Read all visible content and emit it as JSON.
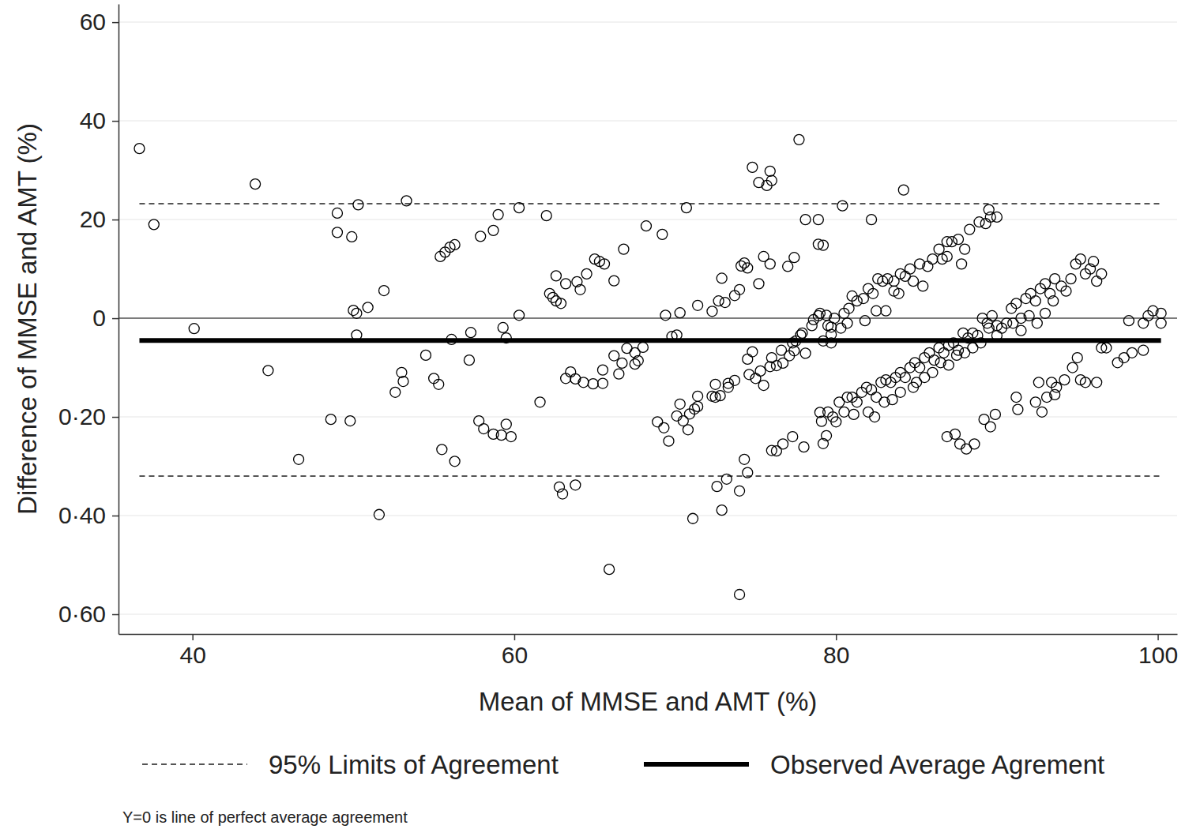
{
  "chart_data": {
    "type": "scatter",
    "x_label": "Mean of MMSE and AMT (%)",
    "y_label": "Difference of MMSE and AMT (%)",
    "note": "Y=0 is line of perfect average agreement",
    "xlim": [
      35.4,
      101.2
    ],
    "ylim": [
      -64,
      63.7
    ],
    "xticks": [
      40,
      60,
      80,
      100
    ],
    "yticks": [
      {
        "value": -60,
        "label": "0·60"
      },
      {
        "value": -40,
        "label": "0·40"
      },
      {
        "value": -20,
        "label": "0·20"
      },
      0,
      20,
      40,
      60
    ],
    "grid": true,
    "marker": "circle",
    "color": "#000000",
    "zero_line": 0,
    "reference_lines": [
      {
        "name": "95% Limits of Agreement",
        "values": [
          23.2,
          -32
        ],
        "line_style": "dashed",
        "color": "#555555"
      },
      {
        "name": "Observed Average Agrement",
        "values": [
          -4.5
        ],
        "line_style": "solid",
        "color": "#000000"
      }
    ],
    "x": [
      36.7,
      37.6,
      40.1,
      43.9,
      44.7,
      46.6,
      49.0,
      49.0,
      48.6,
      49.8,
      50.0,
      50.2,
      50.2,
      49.9,
      50.3,
      50.9,
      51.6,
      51.9,
      53.3,
      53.0,
      53.1,
      52.6,
      54.5,
      55.0,
      55.3,
      55.4,
      55.7,
      56.0,
      56.3,
      55.5,
      56.1,
      56.3,
      57.2,
      57.3,
      57.9,
      57.8,
      58.1,
      58.7,
      59.0,
      58.7,
      59.2,
      59.5,
      59.8,
      59.3,
      59.5,
      60.3,
      60.3,
      61.6,
      62.0,
      62.2,
      62.4,
      62.6,
      62.9,
      62.6,
      63.2,
      63.9,
      64.1,
      62.8,
      63.0,
      63.8,
      63.2,
      63.5,
      63.8,
      64.5,
      65.0,
      65.3,
      65.6,
      64.3,
      64.9,
      65.5,
      65.5,
      66.2,
      66.2,
      65.9,
      66.5,
      66.7,
      67.0,
      67.5,
      66.8,
      68.2,
      67.5,
      67.7,
      68.0,
      69.2,
      69.4,
      68.9,
      69.3,
      69.6,
      69.8,
      70.1,
      70.1,
      70.3,
      70.7,
      70.3,
      70.5,
      70.8,
      70.9,
      71.2,
      71.4,
      71.4,
      71.1,
      71.4,
      72.3,
      72.7,
      73.1,
      72.9,
      72.5,
      72.3,
      72.8,
      73.3,
      73.7,
      72.6,
      72.9,
      73.2,
      73.7,
      74.0,
      74.1,
      74.3,
      74.5,
      74.8,
      75.2,
      75.7,
      75.9,
      76.0,
      74.0,
      74.3,
      74.5,
      74.0,
      74.5,
      74.6,
      74.8,
      75.0,
      75.3,
      75.2,
      75.5,
      75.5,
      75.9,
      76.3,
      75.9,
      76.0,
      76.3,
      76.7,
      77.3,
      76.7,
      77.1,
      77.4,
      77.0,
      77.4,
      77.7,
      78.0,
      77.5,
      77.8,
      78.1,
      78.1,
      78.6,
      78.9,
      78.9,
      79.2,
      78.9,
      79.0,
      79.1,
      79.2,
      79.4,
      79.0,
      79.4,
      79.5,
      79.7,
      79.9,
      79.2,
      79.7,
      80.5,
      80.8,
      81.0,
      81.3,
      81.7,
      82.0,
      82.3,
      82.6,
      82.9,
      83.2,
      83.6,
      84.0,
      84.3,
      84.6,
      84.8,
      85.2,
      85.7,
      86.0,
      86.4,
      86.6,
      86.9,
      87.2,
      87.6,
      88.0,
      88.3,
      88.9,
      89.3,
      89.6,
      89.5,
      90.0,
      82.2,
      80.4,
      84.2,
      83.6,
      85.4,
      86.9,
      87.8,
      81.8,
      82.5,
      83.1,
      83.9,
      79.7,
      80.3,
      80.7,
      72.5,
      73.3,
      76.0,
      76.6,
      77.3,
      77.9,
      78.5,
      79.5,
      79.8,
      80.2,
      80.5,
      80.7,
      81.0,
      81.3,
      81.6,
      81.9,
      82.2,
      82.5,
      82.8,
      83.1,
      83.4,
      83.7,
      84.0,
      84.3,
      84.6,
      84.9,
      85.2,
      85.5,
      85.8,
      86.1,
      86.4,
      86.7,
      87.0,
      87.3,
      87.6,
      87.9,
      88.2,
      88.5,
      88.8,
      89.1,
      89.4,
      89.7,
      90.0,
      90.3,
      90.6,
      90.9,
      91.2,
      91.5,
      91.8,
      92.1,
      92.4,
      92.7,
      93.0,
      93.3,
      93.6,
      94.0,
      94.3,
      94.6,
      94.9,
      95.2,
      95.5,
      95.8,
      96.0,
      96.2,
      96.5,
      81.1,
      82.0,
      83.0,
      84.0,
      85.0,
      86.0,
      87.0,
      88.0,
      89.0,
      90.0,
      91.0,
      92.0,
      93.0,
      80.0,
      82.4,
      83.5,
      84.8,
      85.5,
      86.5,
      87.5,
      88.5,
      89.5,
      91.5,
      92.5,
      93.5,
      86.9,
      87.4,
      87.7,
      88.1,
      88.6,
      89.2,
      89.6,
      89.9,
      91.3,
      92.4,
      92.8,
      93.1,
      93.6,
      93.7,
      94.2,
      94.7,
      95.0,
      95.2,
      95.5,
      96.2,
      96.5,
      96.8,
      97.5,
      97.9,
      98.4,
      99.1,
      98.2,
      99.1,
      99.4,
      99.7,
      100.2,
      100.2,
      91.2,
      93.4,
      92.6
    ],
    "values": [
      34.4,
      19.0,
      -2.1,
      27.2,
      -10.6,
      -28.6,
      21.3,
      17.4,
      -20.5,
      -20.8,
      1.6,
      1.0,
      -3.4,
      16.5,
      23.0,
      2.2,
      -39.8,
      5.6,
      23.8,
      -11.0,
      -12.8,
      -15.0,
      -7.5,
      -12.2,
      -13.4,
      12.5,
      13.4,
      14.4,
      14.9,
      -26.6,
      -4.3,
      -29.0,
      -8.5,
      -2.9,
      16.6,
      -20.8,
      -22.4,
      17.8,
      21.0,
      -23.5,
      -23.7,
      -21.5,
      -24.0,
      -1.9,
      -4.0,
      22.4,
      0.6,
      -17.0,
      20.8,
      5.0,
      4.2,
      3.5,
      3.0,
      8.6,
      7.0,
      7.4,
      5.8,
      -34.2,
      -35.6,
      -33.8,
      -12.2,
      -10.9,
      -12.3,
      9.0,
      12.0,
      11.5,
      11.0,
      -13.0,
      -13.3,
      -13.2,
      -10.5,
      -7.6,
      7.6,
      -50.9,
      -11.3,
      -9.1,
      -6.1,
      -7.0,
      14.0,
      18.7,
      -9.3,
      -8.6,
      -5.9,
      17.0,
      0.6,
      -21.0,
      -22.2,
      -24.9,
      -3.7,
      -3.4,
      -19.8,
      1.1,
      22.4,
      -17.4,
      -20.8,
      -22.6,
      -19.4,
      -18.4,
      -17.9,
      -15.8,
      -40.6,
      2.6,
      1.4,
      3.5,
      3.2,
      8.1,
      -13.4,
      -15.8,
      -15.7,
      -13.2,
      -12.6,
      -34.1,
      -38.9,
      -32.6,
      4.6,
      5.8,
      10.6,
      11.2,
      10.2,
      30.6,
      27.5,
      26.9,
      29.8,
      27.9,
      -35.0,
      -28.6,
      -31.3,
      -56.0,
      -8.3,
      -11.4,
      -6.8,
      -12.2,
      -10.7,
      7.0,
      12.5,
      -13.6,
      -9.8,
      -9.6,
      11.0,
      -26.8,
      -26.9,
      -25.5,
      -24.0,
      -9.1,
      -7.6,
      -6.6,
      10.5,
      12.3,
      36.2,
      -26.1,
      -4.6,
      -3.4,
      -7.1,
      20.0,
      -0.3,
      0.5,
      15.0,
      14.8,
      20.0,
      -19.1,
      -20.9,
      -25.4,
      -23.8,
      1.0,
      0.6,
      -1.5,
      -1.8,
      0.0,
      -4.6,
      -3.3,
      1.0,
      2.0,
      4.5,
      3.5,
      4.0,
      6.0,
      5.0,
      8.0,
      7.5,
      8.0,
      7.5,
      9.0,
      8.5,
      10.0,
      7.5,
      11.0,
      10.5,
      12.0,
      14.0,
      12.0,
      15.5,
      15.5,
      16.0,
      14.0,
      18.0,
      19.5,
      19.2,
      20.5,
      22.0,
      20.5,
      20.0,
      22.8,
      26.0,
      5.5,
      6.5,
      12.5,
      11.0,
      -0.5,
      1.5,
      1.5,
      5.0,
      -5.0,
      -2.0,
      -1.0,
      -16.0,
      -14.0,
      -8.0,
      -6.5,
      -5.0,
      -3.0,
      -1.5,
      -19.0,
      -20.0,
      -17.0,
      -19.0,
      -16.0,
      -16.0,
      -17.0,
      -15.0,
      -14.0,
      -14.5,
      -16.0,
      -13.0,
      -12.5,
      -13.0,
      -12.0,
      -11.0,
      -12.0,
      -10.0,
      -9.0,
      -10.0,
      -8.0,
      -7.0,
      -8.5,
      -6.0,
      -7.0,
      -5.5,
      -5.0,
      -6.5,
      -3.0,
      -4.0,
      -3.0,
      -3.5,
      0.0,
      -1.0,
      0.5,
      -1.5,
      -2.0,
      -1.0,
      2.0,
      3.0,
      0.0,
      4.0,
      5.0,
      3.5,
      6.0,
      7.0,
      5.0,
      8.0,
      6.5,
      5.5,
      8.0,
      11.0,
      12.0,
      9.0,
      10.0,
      11.5,
      7.5,
      9.0,
      -19.5,
      -19.0,
      -17.0,
      -15.0,
      -13.0,
      -11.0,
      -9.5,
      -7.0,
      -5.0,
      -3.5,
      -1.0,
      0.5,
      1.0,
      -21.0,
      -20.0,
      -16.5,
      -14.0,
      -12.0,
      -9.0,
      -7.5,
      -6.0,
      -2.0,
      -2.5,
      -1.0,
      3.5,
      -24.0,
      -23.5,
      -25.5,
      -26.5,
      -25.5,
      -20.5,
      -22.0,
      -19.5,
      -18.5,
      -17.0,
      -19.0,
      -16.0,
      -15.5,
      -14.0,
      -12.5,
      -10.0,
      -8.0,
      -12.5,
      -13.0,
      -13.0,
      -6.0,
      -6.0,
      -9.0,
      -8.0,
      -7.0,
      -6.5,
      -0.5,
      -1.0,
      0.5,
      1.5,
      1.0,
      -1.0,
      -16.0,
      -13.0,
      -13.0
    ]
  }
}
